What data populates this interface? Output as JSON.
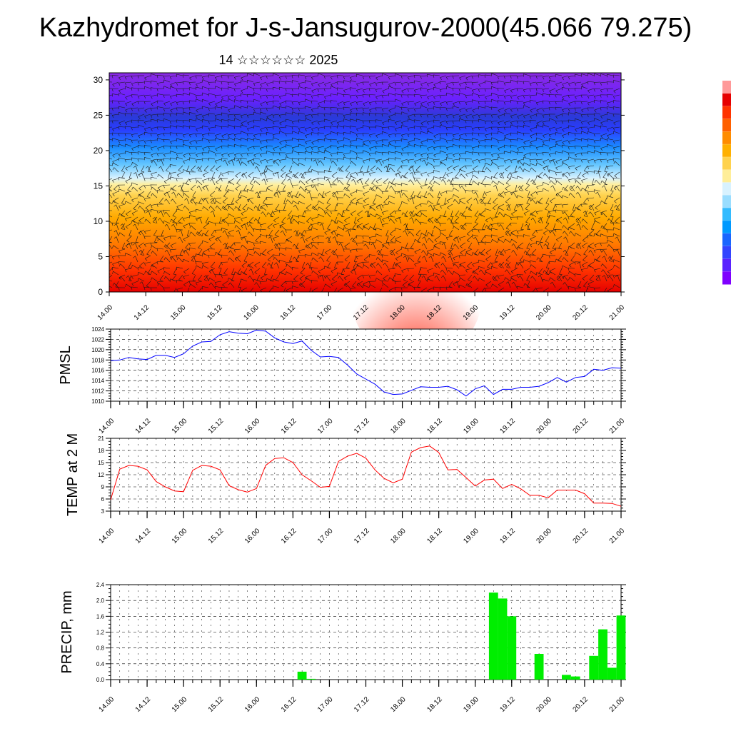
{
  "title": "Kazhydromet for J-s-Jansugurov-2000(45.066 79.275)",
  "subtitle": "14 ☆☆☆☆☆☆ 2025",
  "time_ticks": [
    "14.00",
    "14.12",
    "15.00",
    "15.12",
    "16.00",
    "16.12",
    "17.00",
    "17.12",
    "18.00",
    "18.12",
    "19.00",
    "19.12",
    "20.00",
    "20.12",
    "21.00"
  ],
  "colors": {
    "pmsl_line": "#0000ff",
    "temp_line": "#ff0000",
    "precip_bar": "#00ee00",
    "grid": "#000000"
  },
  "colorbar_colors": [
    "#7f00ff",
    "#5a22ff",
    "#3344ff",
    "#1a66ff",
    "#0099ff",
    "#33bbff",
    "#99ddff",
    "#d8f2ff",
    "#ffee99",
    "#ffd24d",
    "#ffb000",
    "#ff8c00",
    "#ff6000",
    "#ff3300",
    "#e60000",
    "#ff9999"
  ],
  "chart_data": [
    {
      "type": "heatmap",
      "title": "",
      "xlabel": "",
      "ylabel": "",
      "x": [
        "14.00",
        "14.12",
        "15.00",
        "15.12",
        "16.00",
        "16.12",
        "17.00",
        "17.12",
        "18.00",
        "18.12",
        "19.00",
        "19.12",
        "20.00",
        "20.12",
        "21.00"
      ],
      "yticks": [
        0,
        5,
        10,
        15,
        20,
        25,
        30
      ],
      "ylim": [
        0,
        31
      ],
      "colormap": "orange-red at low levels, yellow near 15, blue-purple above 20 (warmest near level 0 around 18.00)",
      "overlay": "wind barbs / streamlines"
    },
    {
      "type": "line",
      "title": "",
      "ylabel": "PMSL",
      "xlabel": "",
      "ylim": [
        1010,
        1024
      ],
      "yticks": [
        1010,
        1012,
        1014,
        1016,
        1018,
        1020,
        1022,
        1024
      ],
      "x": [
        "14.00",
        "14.03",
        "14.06",
        "14.09",
        "14.12",
        "14.15",
        "14.18",
        "14.21",
        "15.00",
        "15.03",
        "15.06",
        "15.09",
        "15.12",
        "15.15",
        "15.18",
        "15.21",
        "16.00",
        "16.03",
        "16.06",
        "16.09",
        "16.12",
        "16.15",
        "16.18",
        "16.21",
        "17.00",
        "17.03",
        "17.06",
        "17.09",
        "17.12",
        "17.15",
        "17.18",
        "17.21",
        "18.00",
        "18.03",
        "18.06",
        "18.09",
        "18.12",
        "18.15",
        "18.18",
        "18.21",
        "19.00",
        "19.03",
        "19.06",
        "19.09",
        "19.12",
        "19.15",
        "19.18",
        "19.21",
        "20.00",
        "20.03",
        "20.06",
        "20.09",
        "20.12",
        "20.15",
        "20.18",
        "20.21",
        "21.00"
      ],
      "series": [
        {
          "values": [
            1017.9,
            1018.0,
            1018.5,
            1018.2,
            1018.1,
            1018.9,
            1018.9,
            1018.5,
            1019.2,
            1020.7,
            1021.5,
            1021.6,
            1022.9,
            1023.5,
            1023.2,
            1023.1,
            1023.8,
            1023.6,
            1022.3,
            1021.5,
            1021.2,
            1021.7,
            1019.9,
            1018.6,
            1018.7,
            1018.5,
            1017.0,
            1015.3,
            1014.3,
            1013.3,
            1011.8,
            1011.3,
            1011.4,
            1012.1,
            1012.8,
            1012.7,
            1012.7,
            1012.9,
            1012.2,
            1011.0,
            1012.4,
            1013.0,
            1011.3,
            1012.3,
            1012.3,
            1012.7,
            1012.7,
            1012.9,
            1013.6,
            1014.6,
            1013.7,
            1014.6,
            1014.8,
            1016.2,
            1016.0,
            1016.5,
            1016.4
          ]
        }
      ]
    },
    {
      "type": "line",
      "title": "",
      "ylabel": "TEMP at 2 M",
      "xlabel": "",
      "ylim": [
        3,
        21
      ],
      "yticks": [
        3,
        6,
        9,
        12,
        15,
        18,
        21
      ],
      "x": [
        "14.00",
        "14.03",
        "14.06",
        "14.09",
        "14.12",
        "14.15",
        "14.18",
        "14.21",
        "15.00",
        "15.03",
        "15.06",
        "15.09",
        "15.12",
        "15.15",
        "15.18",
        "15.21",
        "16.00",
        "16.03",
        "16.06",
        "16.09",
        "16.12",
        "16.15",
        "16.18",
        "16.21",
        "17.00",
        "17.03",
        "17.06",
        "17.09",
        "17.12",
        "17.15",
        "17.18",
        "17.21",
        "18.00",
        "18.03",
        "18.06",
        "18.09",
        "18.12",
        "18.15",
        "18.18",
        "18.21",
        "19.00",
        "19.03",
        "19.06",
        "19.09",
        "19.12",
        "19.15",
        "19.18",
        "19.21",
        "20.00",
        "20.03",
        "20.06",
        "20.09",
        "20.12",
        "20.15",
        "20.18",
        "20.21",
        "21.00"
      ],
      "series": [
        {
          "values": [
            5.8,
            13.4,
            14.3,
            14.1,
            13.2,
            10.3,
            9.0,
            8.0,
            7.8,
            13.1,
            14.3,
            14.1,
            13.2,
            9.3,
            8.3,
            7.7,
            8.6,
            14.3,
            16.0,
            16.2,
            15.0,
            12.0,
            10.5,
            8.9,
            9.1,
            15.3,
            16.6,
            17.3,
            16.1,
            13.2,
            11.1,
            10.0,
            10.9,
            17.6,
            18.7,
            19.1,
            17.5,
            13.2,
            13.3,
            11.3,
            9.2,
            10.7,
            10.9,
            8.6,
            9.6,
            8.5,
            6.9,
            6.9,
            6.3,
            8.2,
            8.2,
            8.2,
            7.3,
            5.0,
            5.0,
            4.9,
            4.2
          ]
        }
      ]
    },
    {
      "type": "bar",
      "title": "",
      "ylabel": "PRECIP, mm",
      "xlabel": "",
      "ylim": [
        0,
        2.4
      ],
      "yticks": [
        "0.0",
        "0.4",
        "0.8",
        "1.2",
        "1.6",
        "2.0",
        "2.4"
      ],
      "x": [
        "14.00",
        "14.03",
        "14.06",
        "14.09",
        "14.12",
        "14.15",
        "14.18",
        "14.21",
        "15.00",
        "15.03",
        "15.06",
        "15.09",
        "15.12",
        "15.15",
        "15.18",
        "15.21",
        "16.00",
        "16.03",
        "16.06",
        "16.09",
        "16.12",
        "16.15",
        "16.18",
        "16.21",
        "17.00",
        "17.03",
        "17.06",
        "17.09",
        "17.12",
        "17.15",
        "17.18",
        "17.21",
        "18.00",
        "18.03",
        "18.06",
        "18.09",
        "18.12",
        "18.15",
        "18.18",
        "18.21",
        "19.00",
        "19.03",
        "19.06",
        "19.09",
        "19.12",
        "19.15",
        "19.18",
        "19.21",
        "20.00",
        "20.03",
        "20.06",
        "20.09",
        "20.12",
        "20.15",
        "20.18",
        "20.21",
        "21.00"
      ],
      "series": [
        {
          "values": [
            0,
            0,
            0,
            0,
            0,
            0,
            0,
            0,
            0,
            0,
            0,
            0,
            0,
            0,
            0,
            0,
            0,
            0,
            0,
            0,
            0,
            0.2,
            0.02,
            0,
            0,
            0,
            0,
            0,
            0,
            0,
            0,
            0,
            0,
            0,
            0,
            0,
            0,
            0,
            0,
            0,
            0,
            0,
            2.2,
            2.05,
            1.6,
            0,
            0,
            0.65,
            0,
            0,
            0.12,
            0.08,
            0,
            0.6,
            1.27,
            0.3,
            1.62
          ]
        }
      ]
    }
  ]
}
